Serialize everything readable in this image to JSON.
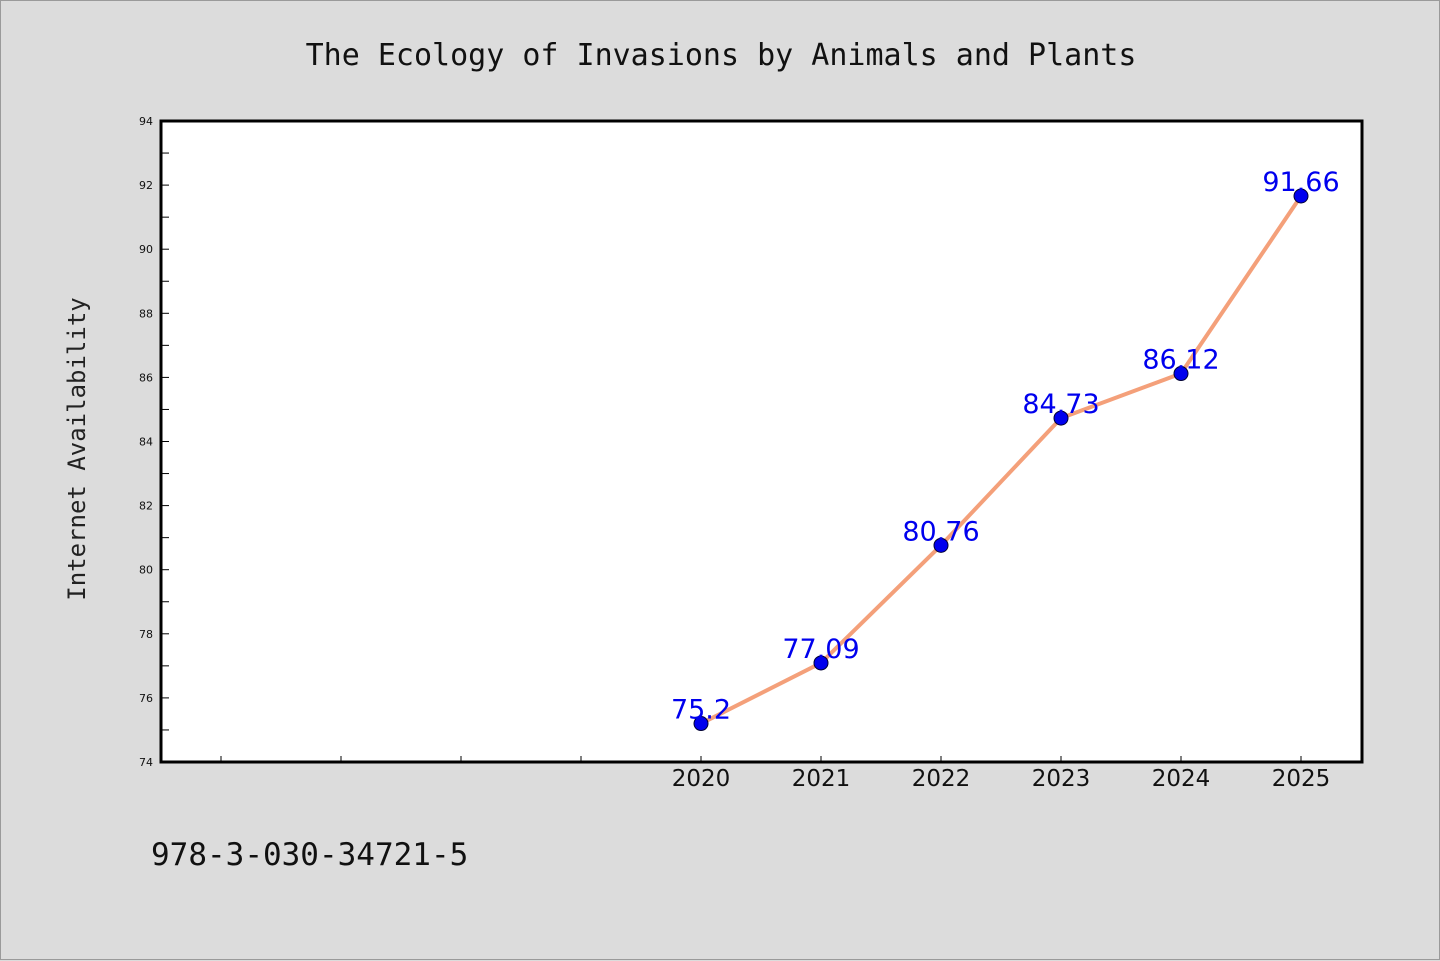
{
  "footer": {
    "code": "978-3-030-34721-5"
  },
  "colors": {
    "background": "#dcdcdc",
    "plot_bg": "#ffffff",
    "line": "#f4a07a",
    "marker": "#0000ee",
    "data_label": "#0000ee",
    "axis": "#000000"
  },
  "chart_data": {
    "type": "line",
    "title": "The Ecology of Invasions by Animals and Plants",
    "xlabel": "",
    "ylabel": "Internet Availability",
    "categories": [
      "2020",
      "2021",
      "2022",
      "2023",
      "2024",
      "2025"
    ],
    "series": [
      {
        "values": [
          75.2,
          77.09,
          80.76,
          84.73,
          86.12,
          91.66
        ]
      }
    ],
    "data_labels": [
      "75.2",
      "77.09",
      "80.76",
      "84.73",
      "86.12",
      "91.66"
    ],
    "ylim": [
      74,
      94
    ],
    "yticks": [
      "74",
      "76",
      "78",
      "80",
      "82",
      "84",
      "86",
      "88",
      "90",
      "92",
      "94"
    ],
    "grid": false,
    "legend": "none"
  }
}
